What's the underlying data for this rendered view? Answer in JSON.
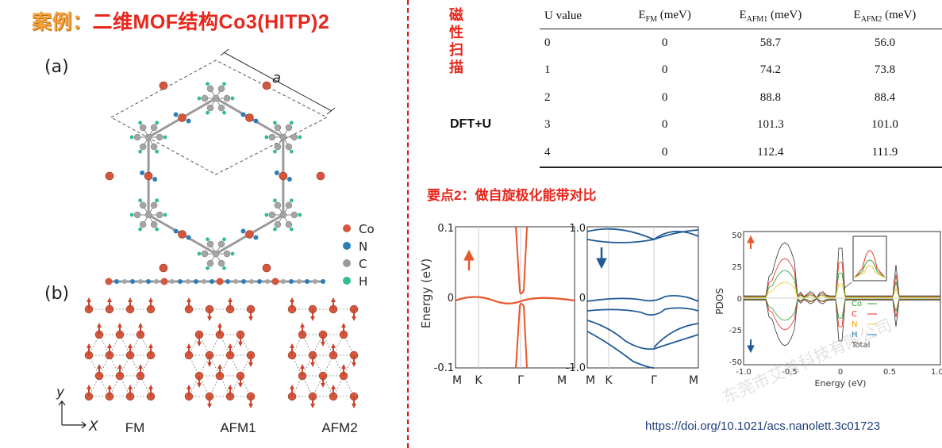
{
  "header": {
    "title_lead": "案例：",
    "title_main": "二维MOF结构Co3(HITP)2"
  },
  "figure_left": {
    "panel_a": "(a)",
    "panel_b": "(b)",
    "lattice_label": "a",
    "legend": [
      "Co",
      "N",
      "C",
      "H"
    ],
    "axis_y": "y",
    "axis_x": "X",
    "configs": [
      "FM",
      "AFM1",
      "AFM2"
    ]
  },
  "magnetic_scan": {
    "vertical_label": [
      "磁",
      "性",
      "扫",
      "描"
    ],
    "method": "DFT+U",
    "headers": [
      "U value",
      "E_FM (meV)",
      "E_AFM1 (meV)",
      "E_AFM2 (meV)"
    ],
    "headers_display": [
      {
        "base": "U value",
        "sub": "",
        "unit": ""
      },
      {
        "base": "E",
        "sub": "FM",
        "unit": " (meV)"
      },
      {
        "base": "E",
        "sub": "AFM1",
        "unit": " (meV)"
      },
      {
        "base": "E",
        "sub": "AFM2",
        "unit": " (meV)"
      }
    ],
    "rows": [
      [
        "0",
        "0",
        "58.7",
        "56.0"
      ],
      [
        "1",
        "0",
        "74.2",
        "73.8"
      ],
      [
        "2",
        "0",
        "88.8",
        "88.4"
      ],
      [
        "3",
        "0",
        "101.3",
        "101.0"
      ],
      [
        "4",
        "0",
        "112.4",
        "111.9"
      ]
    ]
  },
  "section2": {
    "title": "要点2：做自旋极化能带对比"
  },
  "band_plots": {
    "ylabel": "Energy (eV)",
    "left_yticks": [
      "0.1",
      "0",
      "-0.1"
    ],
    "right_yticks": [
      "1.0",
      "0",
      "-1.0"
    ],
    "kpath": [
      "M",
      "K",
      "Γ",
      "M"
    ]
  },
  "pdos_plot": {
    "ylabel": "PDOS",
    "xlabel": "Energy (eV)",
    "yticks": [
      "50",
      "25",
      "0",
      "-25",
      "-50"
    ],
    "xticks": [
      "-1.0",
      "-0.5",
      "0",
      "0.5",
      "1.0"
    ],
    "legend": [
      "Co",
      "C",
      "N",
      "H",
      "Total"
    ],
    "colors": {
      "Co": "#2ca02c",
      "C": "#e8261c",
      "N": "#f2c12e",
      "H": "#1f77b4",
      "Total": "#333333"
    }
  },
  "chart_data": [
    {
      "type": "table",
      "columns": [
        "U value",
        "E_FM (meV)",
        "E_AFM1 (meV)",
        "E_AFM2 (meV)"
      ],
      "rows": [
        [
          0,
          0,
          58.7,
          56.0
        ],
        [
          1,
          0,
          74.2,
          73.8
        ],
        [
          2,
          0,
          88.8,
          88.4
        ],
        [
          3,
          0,
          101.3,
          101.0
        ],
        [
          4,
          0,
          112.4,
          111.9
        ]
      ]
    },
    {
      "type": "line",
      "ylabel": "Energy (eV)",
      "ylim": [
        -0.1,
        0.1
      ],
      "x_ticks": [
        "M",
        "K",
        "Γ",
        "M"
      ],
      "spin": "up"
    },
    {
      "type": "line",
      "ylim": [
        -1.0,
        1.0
      ],
      "x_ticks": [
        "M",
        "K",
        "Γ",
        "M"
      ],
      "spin": "down"
    },
    {
      "type": "line",
      "ylabel": "PDOS",
      "xlabel": "Energy (eV)",
      "xlim": [
        -1.0,
        1.0
      ],
      "ylim": [
        -50,
        50
      ],
      "series": [
        {
          "name": "Co"
        },
        {
          "name": "C"
        },
        {
          "name": "N"
        },
        {
          "name": "H"
        },
        {
          "name": "Total"
        }
      ]
    }
  ],
  "footer": {
    "doi": "https://doi.org/10.1021/acs.nanolett.3c01723",
    "watermark": "东莞市艾普科技有限公司"
  }
}
